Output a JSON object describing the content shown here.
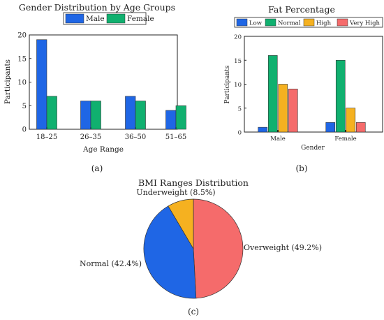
{
  "chart_data": [
    {
      "type": "bar",
      "title": "Gender Distribution by Age Groups",
      "xlabel": "Age Range",
      "ylabel": "Participants",
      "panel_label": "(a)",
      "categories": [
        "18–25",
        "26–35",
        "36–50",
        "51–65"
      ],
      "series": [
        {
          "name": "Male",
          "values": [
            19,
            6,
            7,
            4
          ],
          "color": "#1f66e5"
        },
        {
          "name": "Female",
          "values": [
            7,
            6,
            6,
            5
          ],
          "color": "#10b06f"
        }
      ],
      "ylim": [
        0,
        20
      ],
      "yticks": [
        0,
        5,
        10,
        15,
        20
      ],
      "legend": "top",
      "grid": false
    },
    {
      "type": "bar",
      "title": "Fat Percentage",
      "xlabel": "Gender",
      "ylabel": "Participants",
      "panel_label": "(b)",
      "categories": [
        "Male",
        "Female"
      ],
      "series": [
        {
          "name": "Low",
          "values": [
            1,
            2
          ],
          "color": "#1f66e5"
        },
        {
          "name": "Normal",
          "values": [
            16,
            15
          ],
          "color": "#10b06f"
        },
        {
          "name": "High",
          "values": [
            10,
            5
          ],
          "color": "#f5b120"
        },
        {
          "name": "Very High",
          "values": [
            9,
            2
          ],
          "color": "#f56b6b"
        }
      ],
      "ylim": [
        0,
        20
      ],
      "yticks": [
        0,
        5,
        10,
        15,
        20
      ],
      "legend": "top",
      "grid": false
    },
    {
      "type": "pie",
      "title": "BMI Ranges Distribution",
      "panel_label": "(c)",
      "slices": [
        {
          "label": "Overweight (49.2%)",
          "value": 49.2,
          "color": "#f56b6b"
        },
        {
          "label": "Normal (42.4%)",
          "value": 42.4,
          "color": "#1f66e5"
        },
        {
          "label": "Underweight (8.5%)",
          "value": 8.5,
          "color": "#f5b120"
        }
      ]
    }
  ]
}
